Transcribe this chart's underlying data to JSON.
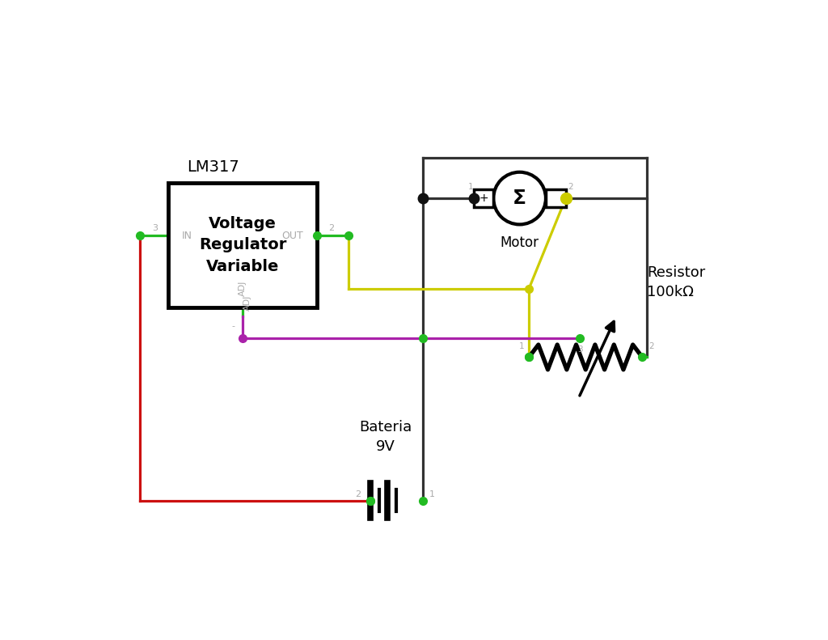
{
  "bg": "#ffffff",
  "c_green": "#22bb22",
  "c_red": "#cc1111",
  "c_yellow": "#cccc00",
  "c_purple": "#aa22aa",
  "c_dark": "#333333",
  "c_black": "#111111",
  "c_gray": "#aaaaaa",
  "lm317_title": "LM317",
  "lm317_body": "Voltage\nRegulator\nVariable",
  "motor_label": "Motor",
  "battery_label": "Bateria\n9V",
  "resistor_label": "Resistor\n100kΩ",
  "lw": 2.3,
  "lw_thick": 3.8,
  "dot_sz": 7
}
